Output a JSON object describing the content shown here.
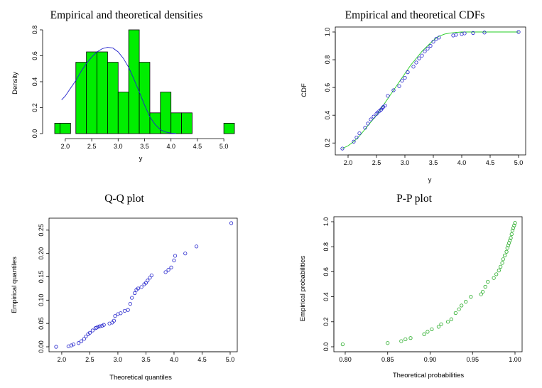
{
  "colors": {
    "bar_fill": "#00ee00",
    "density_curve": "#2222cc",
    "cdf_curve": "#22cc22",
    "points_blue": "#2222cc",
    "points_green": "#22aa22"
  },
  "chart_data": [
    {
      "type": "bar",
      "title": "Empirical and theoretical densities",
      "xlabel": "y",
      "ylabel": "Density",
      "xlim": [
        1.8,
        5.2
      ],
      "ylim": [
        0,
        0.8
      ],
      "xticks": [
        "2.0",
        "2.5",
        "3.0",
        "3.5",
        "4.0",
        "4.5",
        "5.0"
      ],
      "yticks": [
        "0.0",
        "0.2",
        "0.4",
        "0.6",
        "0.8"
      ],
      "bins": [
        {
          "x0": 1.8,
          "x1": 1.9,
          "value": 0.08
        },
        {
          "x0": 1.9,
          "x1": 2.1,
          "value": 0.08
        },
        {
          "x0": 2.2,
          "x1": 2.4,
          "value": 0.55
        },
        {
          "x0": 2.4,
          "x1": 2.6,
          "value": 0.63
        },
        {
          "x0": 2.6,
          "x1": 2.8,
          "value": 0.63
        },
        {
          "x0": 2.8,
          "x1": 3.0,
          "value": 0.55
        },
        {
          "x0": 3.0,
          "x1": 3.2,
          "value": 0.32
        },
        {
          "x0": 3.2,
          "x1": 3.4,
          "value": 0.8
        },
        {
          "x0": 3.4,
          "x1": 3.6,
          "value": 0.55
        },
        {
          "x0": 3.6,
          "x1": 3.8,
          "value": 0.16
        },
        {
          "x0": 3.8,
          "x1": 4.0,
          "value": 0.32
        },
        {
          "x0": 4.0,
          "x1": 4.2,
          "value": 0.16
        },
        {
          "x0": 4.2,
          "x1": 4.4,
          "value": 0.16
        },
        {
          "x0": 4.8,
          "x1": 5.0,
          "value": 0.0
        },
        {
          "x0": 5.0,
          "x1": 5.2,
          "value": 0.08
        }
      ],
      "curve": {
        "x": [
          1.93,
          2.0,
          2.1,
          2.2,
          2.3,
          2.4,
          2.5,
          2.6,
          2.7,
          2.8,
          2.9,
          3.0,
          3.1,
          3.2,
          3.3,
          3.4,
          3.5,
          3.6,
          3.7,
          3.8,
          3.9,
          4.0,
          4.1
        ],
        "y": [
          0.26,
          0.29,
          0.35,
          0.41,
          0.48,
          0.54,
          0.59,
          0.63,
          0.655,
          0.665,
          0.66,
          0.63,
          0.58,
          0.51,
          0.42,
          0.32,
          0.22,
          0.13,
          0.07,
          0.03,
          0.012,
          0.004,
          0.0
        ]
      }
    },
    {
      "type": "line",
      "title": "Empirical and theoretical CDFs",
      "xlabel": "y",
      "ylabel": "CDF",
      "xlim": [
        1.9,
        5.0
      ],
      "ylim": [
        0.15,
        1.0
      ],
      "xticks": [
        "2.0",
        "2.5",
        "3.0",
        "3.5",
        "4.0",
        "4.5",
        "5.0"
      ],
      "yticks": [
        "0.2",
        "0.4",
        "0.6",
        "0.8",
        "1.0"
      ],
      "curve": {
        "x": [
          1.9,
          2.0,
          2.1,
          2.2,
          2.3,
          2.4,
          2.5,
          2.6,
          2.7,
          2.8,
          2.9,
          3.0,
          3.1,
          3.2,
          3.3,
          3.4,
          3.5,
          3.6,
          3.7,
          3.8,
          3.9,
          4.0,
          4.5,
          5.0
        ],
        "y": [
          0.16,
          0.18,
          0.21,
          0.25,
          0.3,
          0.35,
          0.4,
          0.46,
          0.52,
          0.58,
          0.64,
          0.7,
          0.76,
          0.81,
          0.86,
          0.9,
          0.94,
          0.97,
          0.985,
          0.993,
          0.997,
          1.0,
          1.0,
          1.0
        ]
      },
      "points": {
        "x": [
          1.9,
          2.1,
          2.15,
          2.2,
          2.3,
          2.35,
          2.4,
          2.45,
          2.5,
          2.52,
          2.55,
          2.58,
          2.6,
          2.62,
          2.65,
          2.7,
          2.8,
          2.9,
          2.95,
          3.0,
          3.05,
          3.15,
          3.2,
          3.25,
          3.3,
          3.35,
          3.4,
          3.45,
          3.5,
          3.55,
          3.6,
          3.85,
          3.9,
          4.0,
          4.05,
          4.2,
          4.4,
          5.0
        ],
        "y": [
          0.16,
          0.21,
          0.24,
          0.27,
          0.31,
          0.34,
          0.37,
          0.39,
          0.41,
          0.42,
          0.43,
          0.44,
          0.45,
          0.46,
          0.47,
          0.54,
          0.58,
          0.61,
          0.65,
          0.67,
          0.71,
          0.75,
          0.78,
          0.81,
          0.83,
          0.86,
          0.88,
          0.9,
          0.93,
          0.95,
          0.96,
          0.975,
          0.98,
          0.985,
          0.99,
          0.993,
          0.996,
          1.0
        ]
      }
    },
    {
      "type": "scatter",
      "title": "Q-Q plot",
      "xlabel": "Theoretical quantiles",
      "ylabel": "Empirical quantiles",
      "xlim": [
        1.9,
        5.0
      ],
      "ylim": [
        0,
        0.265
      ],
      "xticks": [
        "2.0",
        "2.5",
        "3.0",
        "3.5",
        "4.0",
        "4.5",
        "5.0"
      ],
      "yticks": [
        "0.00",
        "0.05",
        "0.10",
        "0.15",
        "0.20",
        "0.25"
      ],
      "points": {
        "x": [
          1.9,
          2.12,
          2.17,
          2.21,
          2.3,
          2.35,
          2.4,
          2.43,
          2.47,
          2.5,
          2.55,
          2.6,
          2.62,
          2.65,
          2.68,
          2.72,
          2.75,
          2.85,
          2.9,
          2.93,
          2.95,
          3.0,
          3.05,
          3.12,
          3.18,
          3.22,
          3.25,
          3.3,
          3.33,
          3.36,
          3.42,
          3.47,
          3.5,
          3.53,
          3.57,
          3.6,
          3.85,
          3.9,
          3.95,
          4.0,
          4.02,
          4.2,
          4.4,
          5.02
        ],
        "y": [
          0.0,
          0.001,
          0.003,
          0.005,
          0.008,
          0.012,
          0.017,
          0.022,
          0.027,
          0.03,
          0.035,
          0.04,
          0.041,
          0.043,
          0.044,
          0.045,
          0.047,
          0.05,
          0.052,
          0.056,
          0.066,
          0.07,
          0.072,
          0.077,
          0.079,
          0.092,
          0.105,
          0.115,
          0.122,
          0.125,
          0.128,
          0.134,
          0.137,
          0.142,
          0.148,
          0.153,
          0.16,
          0.165,
          0.17,
          0.185,
          0.195,
          0.2,
          0.215,
          0.265
        ]
      }
    },
    {
      "type": "scatter",
      "title": "P-P plot",
      "xlabel": "Theoretical probabilities",
      "ylabel": "Empirical probabilities",
      "xlim": [
        0.795,
        1.0
      ],
      "ylim": [
        0,
        1.0
      ],
      "xticks": [
        "0.80",
        "0.85",
        "0.90",
        "0.95",
        "1.00"
      ],
      "yticks": [
        "0.0",
        "0.2",
        "0.4",
        "0.6",
        "0.8",
        "1.0"
      ],
      "points": {
        "x": [
          0.797,
          0.85,
          0.866,
          0.871,
          0.877,
          0.893,
          0.897,
          0.902,
          0.91,
          0.913,
          0.921,
          0.925,
          0.93,
          0.934,
          0.937,
          0.942,
          0.948,
          0.96,
          0.962,
          0.965,
          0.968,
          0.975,
          0.978,
          0.981,
          0.983,
          0.985,
          0.986,
          0.988,
          0.99,
          0.991,
          0.992,
          0.993,
          0.994,
          0.995,
          0.996,
          0.997,
          0.998,
          0.999,
          1.0
        ],
        "y": [
          0.02,
          0.03,
          0.045,
          0.06,
          0.07,
          0.1,
          0.12,
          0.14,
          0.16,
          0.18,
          0.2,
          0.22,
          0.27,
          0.3,
          0.33,
          0.36,
          0.4,
          0.42,
          0.44,
          0.48,
          0.52,
          0.55,
          0.58,
          0.61,
          0.64,
          0.67,
          0.7,
          0.73,
          0.76,
          0.79,
          0.81,
          0.83,
          0.85,
          0.87,
          0.9,
          0.93,
          0.95,
          0.97,
          0.99
        ]
      }
    }
  ]
}
